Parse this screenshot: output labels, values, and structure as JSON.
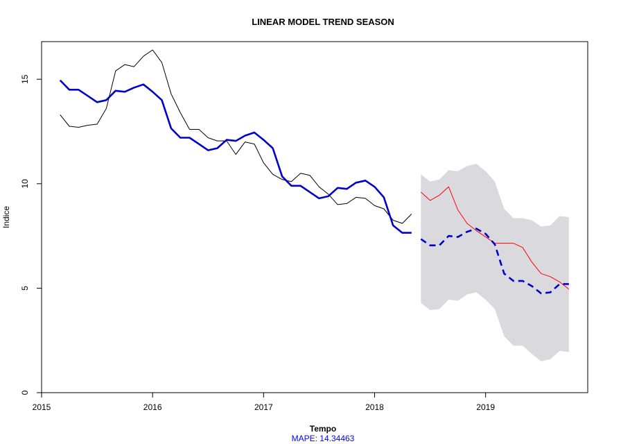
{
  "chart_data": {
    "type": "line",
    "title": "LINEAR MODEL TREND SEASON",
    "xlabel": "Tempo",
    "ylabel": "Indice",
    "note": "MAPE:  14.34463",
    "xlim": [
      2015,
      2019.92
    ],
    "ylim": [
      0,
      16.8
    ],
    "x_ticks": [
      2015,
      2016,
      2017,
      2018,
      2019
    ],
    "x_tick_labels": [
      "2015",
      "2016",
      "2017",
      "2018",
      "2019"
    ],
    "y_ticks": [
      0,
      5,
      10,
      15
    ],
    "y_tick_labels": [
      "0",
      "5",
      "10",
      "15"
    ],
    "colors": {
      "observed": "#000000",
      "fitted": "#0000cd",
      "forecast": "#0000cd",
      "actual_test": "#ff0000",
      "interval": "#d9d9de",
      "note": "#0000ff"
    },
    "series": [
      {
        "role": "observed",
        "x": [
          2015.167,
          2015.25,
          2015.333,
          2015.417,
          2015.5,
          2015.583,
          2015.667,
          2015.75,
          2015.833,
          2015.917,
          2016.0,
          2016.083,
          2016.167,
          2016.25,
          2016.333,
          2016.417,
          2016.5,
          2016.583,
          2016.667,
          2016.75,
          2016.833,
          2016.917,
          2017.0,
          2017.083,
          2017.167,
          2017.25,
          2017.333,
          2017.417,
          2017.5,
          2017.583,
          2017.667,
          2017.75,
          2017.833,
          2017.917,
          2018.0,
          2018.083,
          2018.167,
          2018.25,
          2018.333
        ],
        "values": [
          13.3,
          12.75,
          12.7,
          12.8,
          12.85,
          13.6,
          15.4,
          15.7,
          15.6,
          16.1,
          16.4,
          15.8,
          14.3,
          13.4,
          12.6,
          12.6,
          12.2,
          12.05,
          12.05,
          11.4,
          12.0,
          11.9,
          11.0,
          10.45,
          10.2,
          10.1,
          10.5,
          10.4,
          9.85,
          9.5,
          9.0,
          9.05,
          9.35,
          9.3,
          8.95,
          8.8,
          8.25,
          8.1,
          8.55
        ]
      },
      {
        "role": "fitted",
        "x": [
          2015.167,
          2015.25,
          2015.333,
          2015.417,
          2015.5,
          2015.583,
          2015.667,
          2015.75,
          2015.833,
          2015.917,
          2016.0,
          2016.083,
          2016.167,
          2016.25,
          2016.333,
          2016.417,
          2016.5,
          2016.583,
          2016.667,
          2016.75,
          2016.833,
          2016.917,
          2017.0,
          2017.083,
          2017.167,
          2017.25,
          2017.333,
          2017.417,
          2017.5,
          2017.583,
          2017.667,
          2017.75,
          2017.833,
          2017.917,
          2018.0,
          2018.083,
          2018.167,
          2018.25,
          2018.333
        ],
        "values": [
          14.95,
          14.5,
          14.5,
          14.2,
          13.9,
          14.0,
          14.45,
          14.4,
          14.6,
          14.75,
          14.4,
          14.0,
          12.65,
          12.2,
          12.2,
          11.9,
          11.6,
          11.7,
          12.1,
          12.05,
          12.3,
          12.45,
          12.1,
          11.7,
          10.35,
          9.9,
          9.9,
          9.6,
          9.3,
          9.4,
          9.8,
          9.75,
          10.05,
          10.15,
          9.85,
          9.35,
          8.0,
          7.65,
          7.65
        ]
      },
      {
        "role": "forecast",
        "x": [
          2018.417,
          2018.5,
          2018.583,
          2018.667,
          2018.75,
          2018.833,
          2018.917,
          2019.0,
          2019.083,
          2019.167,
          2019.25,
          2019.333,
          2019.417,
          2019.5,
          2019.583,
          2019.667,
          2019.75
        ],
        "values": [
          7.35,
          7.05,
          7.05,
          7.5,
          7.45,
          7.7,
          7.85,
          7.6,
          7.1,
          5.7,
          5.35,
          5.35,
          5.1,
          4.75,
          4.8,
          5.2,
          5.2
        ]
      },
      {
        "role": "actual_test",
        "x": [
          2018.417,
          2018.5,
          2018.583,
          2018.667,
          2018.75,
          2018.833,
          2018.917,
          2019.0,
          2019.083,
          2019.167,
          2019.25,
          2019.333,
          2019.417,
          2019.5,
          2019.583,
          2019.667,
          2019.75
        ],
        "values": [
          9.6,
          9.2,
          9.45,
          9.85,
          8.75,
          8.1,
          7.75,
          7.45,
          7.15,
          7.15,
          7.15,
          6.95,
          6.25,
          5.7,
          5.55,
          5.3,
          4.95
        ]
      }
    ],
    "interval": {
      "x": [
        2018.417,
        2018.5,
        2018.583,
        2018.667,
        2018.75,
        2018.833,
        2018.917,
        2019.0,
        2019.083,
        2019.167,
        2019.25,
        2019.333,
        2019.417,
        2019.5,
        2019.583,
        2019.667,
        2019.75
      ],
      "upper": [
        10.45,
        10.1,
        10.2,
        10.65,
        10.6,
        10.85,
        10.95,
        10.6,
        10.1,
        8.8,
        8.35,
        8.35,
        8.25,
        7.95,
        8.0,
        8.45,
        8.4
      ],
      "lower": [
        4.3,
        3.95,
        4.0,
        4.45,
        4.4,
        4.7,
        4.8,
        4.45,
        4.0,
        2.7,
        2.25,
        2.25,
        1.85,
        1.5,
        1.6,
        2.0,
        1.95
      ]
    }
  }
}
